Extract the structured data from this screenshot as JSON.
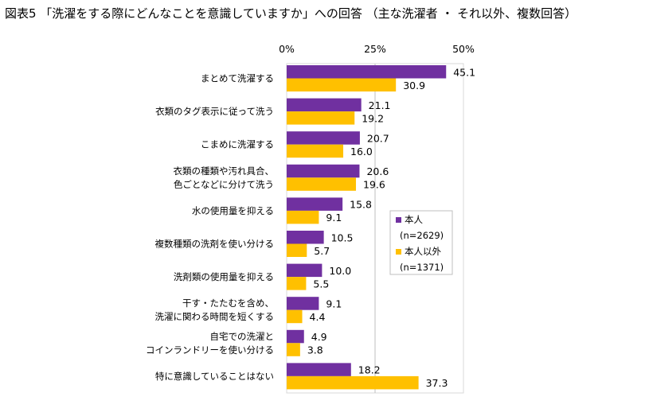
{
  "title": "図表5 「洗濯をする際にどんなことを意識していますか」への回答 （主な洗濯者 ・ それ以外、複数回答）",
  "chart_data": {
    "type": "bar",
    "orientation": "horizontal",
    "title": "図表5 「洗濯をする際にどんなことを意識していますか」への回答 （主な洗濯者 ・ それ以外、複数回答）",
    "categories": [
      [
        "まとめて洗濯する"
      ],
      [
        "衣類のタグ表示に従って洗う"
      ],
      [
        "こまめに洗濯する"
      ],
      [
        "衣類の種類や汚れ具合、",
        "色ごとなどに分けて洗う"
      ],
      [
        "水の使用量を抑える"
      ],
      [
        "複数種類の洗剤を使い分ける"
      ],
      [
        "洗剤類の使用量を抑える"
      ],
      [
        "干す・たたむを含め、",
        "洗濯に関わる時間を短くする"
      ],
      [
        "自宅での洗濯と",
        "コインランドリーを使い分ける"
      ],
      [
        "特に意識していることはない"
      ]
    ],
    "series": [
      {
        "name": "本人",
        "sample": "(n=2629)",
        "color": "#7030A0",
        "values": [
          45.1,
          21.1,
          20.7,
          20.6,
          15.8,
          10.5,
          10.0,
          9.1,
          4.9,
          18.2
        ],
        "labels": [
          "45.1",
          "21.1",
          "20.7",
          "20.6",
          "15.8",
          "10.5",
          "10.0",
          "9.1",
          "4.9",
          "18.2"
        ]
      },
      {
        "name": "本人以外",
        "sample": "(n=1371)",
        "color": "#FFC000",
        "values": [
          30.9,
          19.2,
          16.0,
          19.6,
          9.1,
          5.7,
          5.5,
          4.4,
          3.8,
          37.3
        ],
        "labels": [
          "30.9",
          "19.2",
          "16.0",
          "19.6",
          "9.1",
          "5.7",
          "5.5",
          "4.4",
          "3.8",
          "37.3"
        ]
      }
    ],
    "xlim": [
      0,
      50
    ],
    "xticks": [
      "0%",
      "25%",
      "50%"
    ],
    "xtick_values": [
      0,
      25,
      50
    ],
    "grid": true,
    "legend_position": "right"
  }
}
